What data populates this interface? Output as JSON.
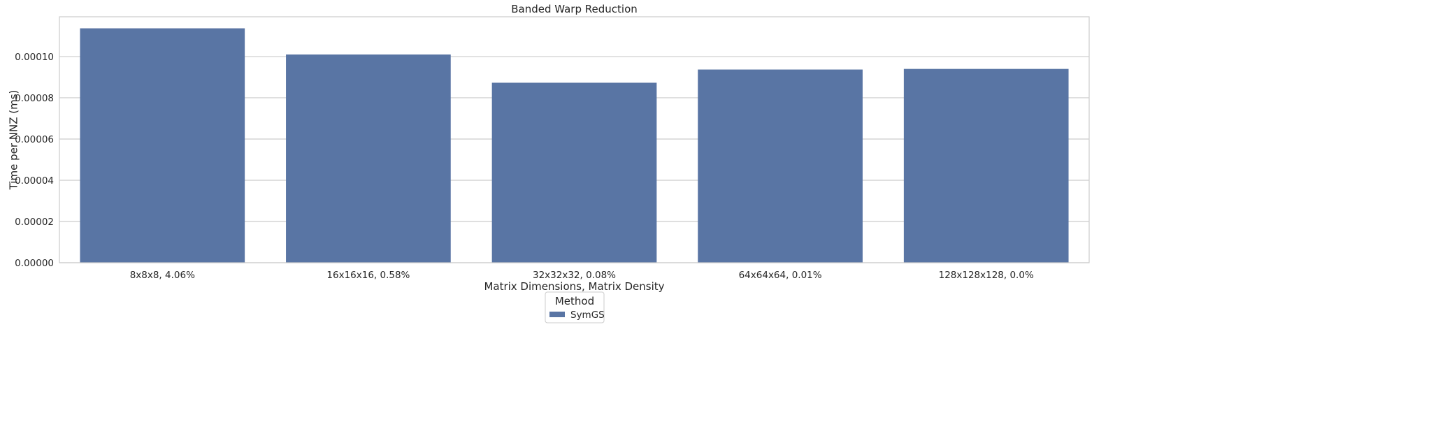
{
  "chart_data": {
    "type": "bar",
    "title": "Banded Warp Reduction",
    "xlabel": "Matrix Dimensions, Matrix Density",
    "ylabel": "Time per NNZ (ms)",
    "categories": [
      "8x8x8, 4.06%",
      "16x16x16, 0.58%",
      "32x32x32, 0.08%",
      "64x64x64, 0.01%",
      "128x128x128, 0.0%"
    ],
    "series": [
      {
        "name": "SymGS",
        "values": [
          0.0001137,
          0.000101,
          8.73e-05,
          9.37e-05,
          9.4e-05
        ],
        "color": "#5975a4"
      }
    ],
    "ylim": [
      0,
      0.0001193
    ],
    "yticks": [
      0,
      2e-05,
      4e-05,
      6e-05,
      8e-05,
      0.0001
    ],
    "ytick_labels": [
      "0.00000",
      "0.00002",
      "0.00004",
      "0.00006",
      "0.00008",
      "0.00010"
    ],
    "grid": true,
    "grid_color": "#cccccc",
    "axes_edge_color": "#cccccc",
    "legend": {
      "title": "Method",
      "placement": "bottom-center"
    }
  }
}
